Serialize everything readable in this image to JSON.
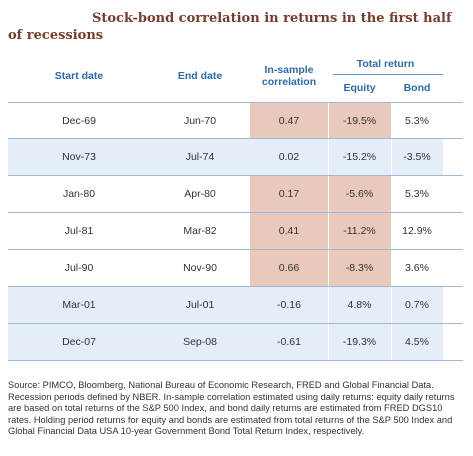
{
  "title": "Stock-bond correlation in returns in the first half of recessions",
  "headers": {
    "start_date": "Start date",
    "end_date": "End date",
    "correlation": "In-sample correlation",
    "total_return": "Total return",
    "equity": "Equity",
    "bond": "Bond"
  },
  "rows": [
    {
      "start": "Dec-69",
      "end": "Jun-70",
      "corr": "0.47",
      "equity": "-19.5%",
      "bond": "5.3%",
      "shaded": true
    },
    {
      "start": "Nov-73",
      "end": "Jul-74",
      "corr": "0.02",
      "equity": "-15.2%",
      "bond": "-3.5%",
      "shaded": false
    },
    {
      "start": "Jan-80",
      "end": "Apr-80",
      "corr": "0.17",
      "equity": "-5.6%",
      "bond": "5.3%",
      "shaded": true
    },
    {
      "start": "Jul-81",
      "end": "Mar-82",
      "corr": "0.41",
      "equity": "-11.2%",
      "bond": "12.9%",
      "shaded": true
    },
    {
      "start": "Jul-90",
      "end": "Nov-90",
      "corr": "0.66",
      "equity": "-8.3%",
      "bond": "3.6%",
      "shaded": true
    },
    {
      "start": "Mar-01",
      "end": "Jul-01",
      "corr": "-0.16",
      "equity": "4.8%",
      "bond": "0.7%",
      "shaded": false
    },
    {
      "start": "Dec-07",
      "end": "Sep-08",
      "corr": "-0.61",
      "equity": "-19.3%",
      "bond": "4.5%",
      "shaded": false
    }
  ],
  "source": "Source: PIMCO, Bloomberg, National Bureau of Economic Research, FRED and Global Financial Data. Recession periods defined by NBER. In-sample correlation estimated using daily returns: equity daily returns are based on total returns of the S&P 500 Index, and bond daily returns are estimated from FRED DGS10 rates. Holding period returns for equity and bonds are estimated from total returns of the S&P 500 Index and Global Financial Data USA 10-year Government Bond Total Return Index, respectively.",
  "colors": {
    "title": "#7a3b2a",
    "header": "#2a6bb3",
    "shaded": "#e8c9ba",
    "alt": "#e4edf8"
  }
}
